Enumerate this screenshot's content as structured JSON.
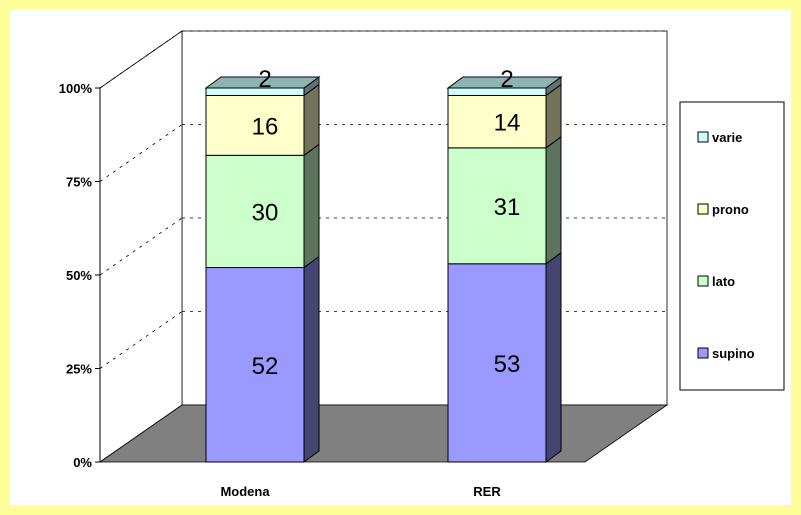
{
  "chart_data": {
    "type": "bar",
    "stacked": true,
    "three_d": true,
    "categories": [
      "Modena",
      "RER"
    ],
    "series": [
      {
        "name": "supino",
        "values": [
          52,
          53
        ]
      },
      {
        "name": "lato",
        "values": [
          30,
          31
        ]
      },
      {
        "name": "prono",
        "values": [
          16,
          14
        ]
      },
      {
        "name": "varie",
        "values": [
          2,
          2
        ]
      }
    ],
    "y_ticks": [
      "0%",
      "25%",
      "50%",
      "75%",
      "100%"
    ],
    "ylim": [
      0,
      100
    ],
    "legend": "right",
    "grid": true
  },
  "colors": {
    "background": "#ffff99",
    "floor": "#808080",
    "supino": "#9999ff",
    "lato": "#ccffcc",
    "prono": "#ffffcc",
    "varie": "#ccffff"
  }
}
